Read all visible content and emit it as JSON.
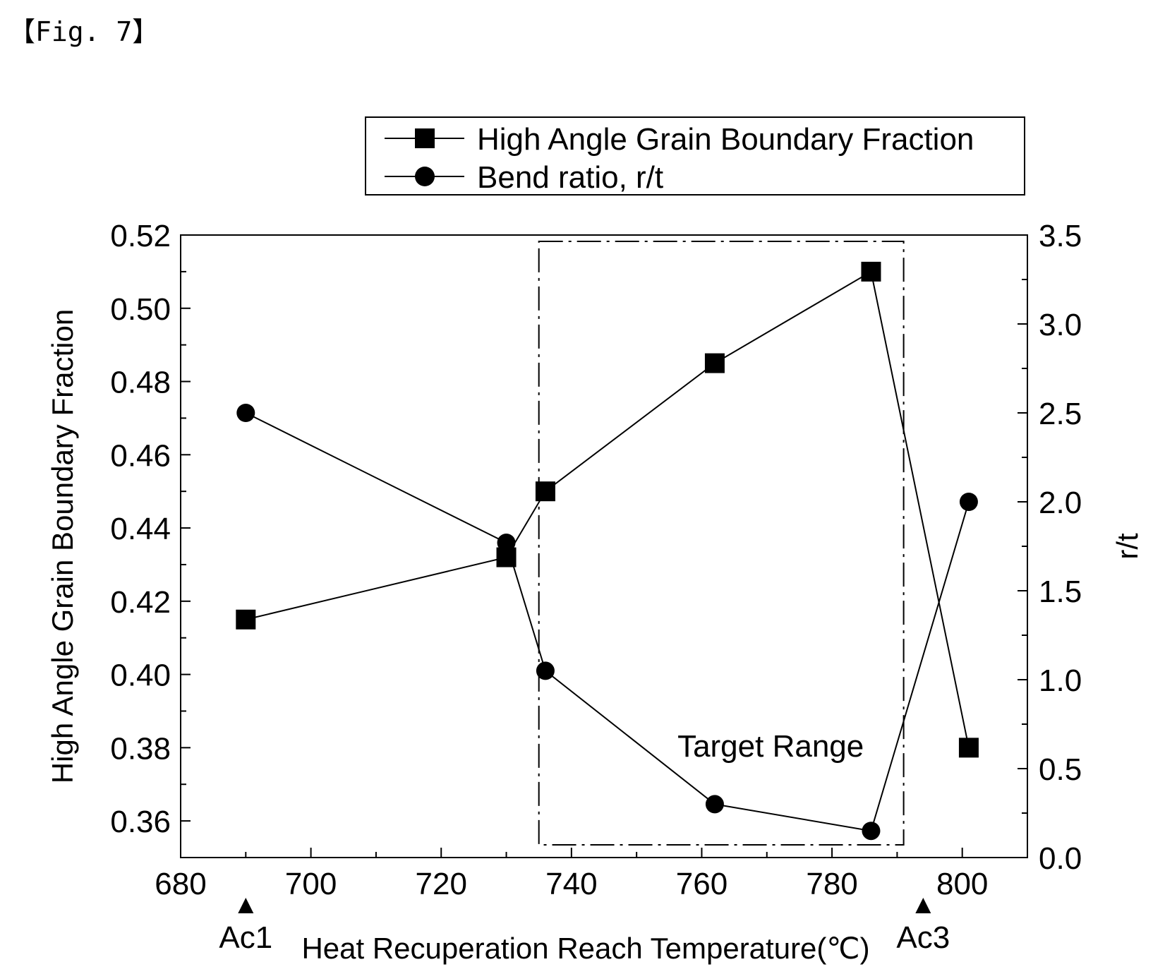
{
  "figure_label": "【Fig. 7】",
  "chart_data": {
    "type": "line",
    "x_axis": {
      "label": "Heat Recuperation Reach Temperature(℃)",
      "range": [
        680,
        810
      ],
      "ticks": [
        680,
        700,
        720,
        740,
        760,
        780,
        800
      ]
    },
    "y_axis_left": {
      "label": "High Angle Grain Boundary Fraction",
      "range": [
        0.35,
        0.52
      ],
      "ticks": [
        "0.36",
        "0.38",
        "0.40",
        "0.42",
        "0.44",
        "0.46",
        "0.48",
        "0.50",
        "0.52"
      ]
    },
    "y_axis_right": {
      "label": "r/t",
      "range": [
        0.0,
        3.5
      ],
      "ticks": [
        "0.0",
        "0.5",
        "1.0",
        "1.5",
        "2.0",
        "2.5",
        "3.0",
        "3.5"
      ]
    },
    "series": [
      {
        "name": "High Angle Grain Boundary Fraction",
        "marker": "square",
        "axis": "left",
        "x": [
          690,
          730,
          736,
          762,
          786,
          801
        ],
        "y": [
          0.415,
          0.432,
          0.45,
          0.485,
          0.51,
          0.38
        ]
      },
      {
        "name": "Bend ratio, r/t",
        "marker": "circle",
        "axis": "right",
        "x": [
          690,
          730,
          736,
          762,
          786,
          801
        ],
        "y": [
          2.5,
          1.77,
          1.05,
          0.3,
          0.15,
          2.0
        ]
      }
    ],
    "annotations": [
      {
        "text": "Target Range",
        "x_range": [
          735,
          791
        ],
        "style": "dash-dot box"
      },
      {
        "text": "Ac1",
        "x": 690,
        "marker": "triangle"
      },
      {
        "text": "Ac3",
        "x": 794,
        "marker": "triangle"
      }
    ],
    "legend_position": "top-right",
    "grid": false
  }
}
